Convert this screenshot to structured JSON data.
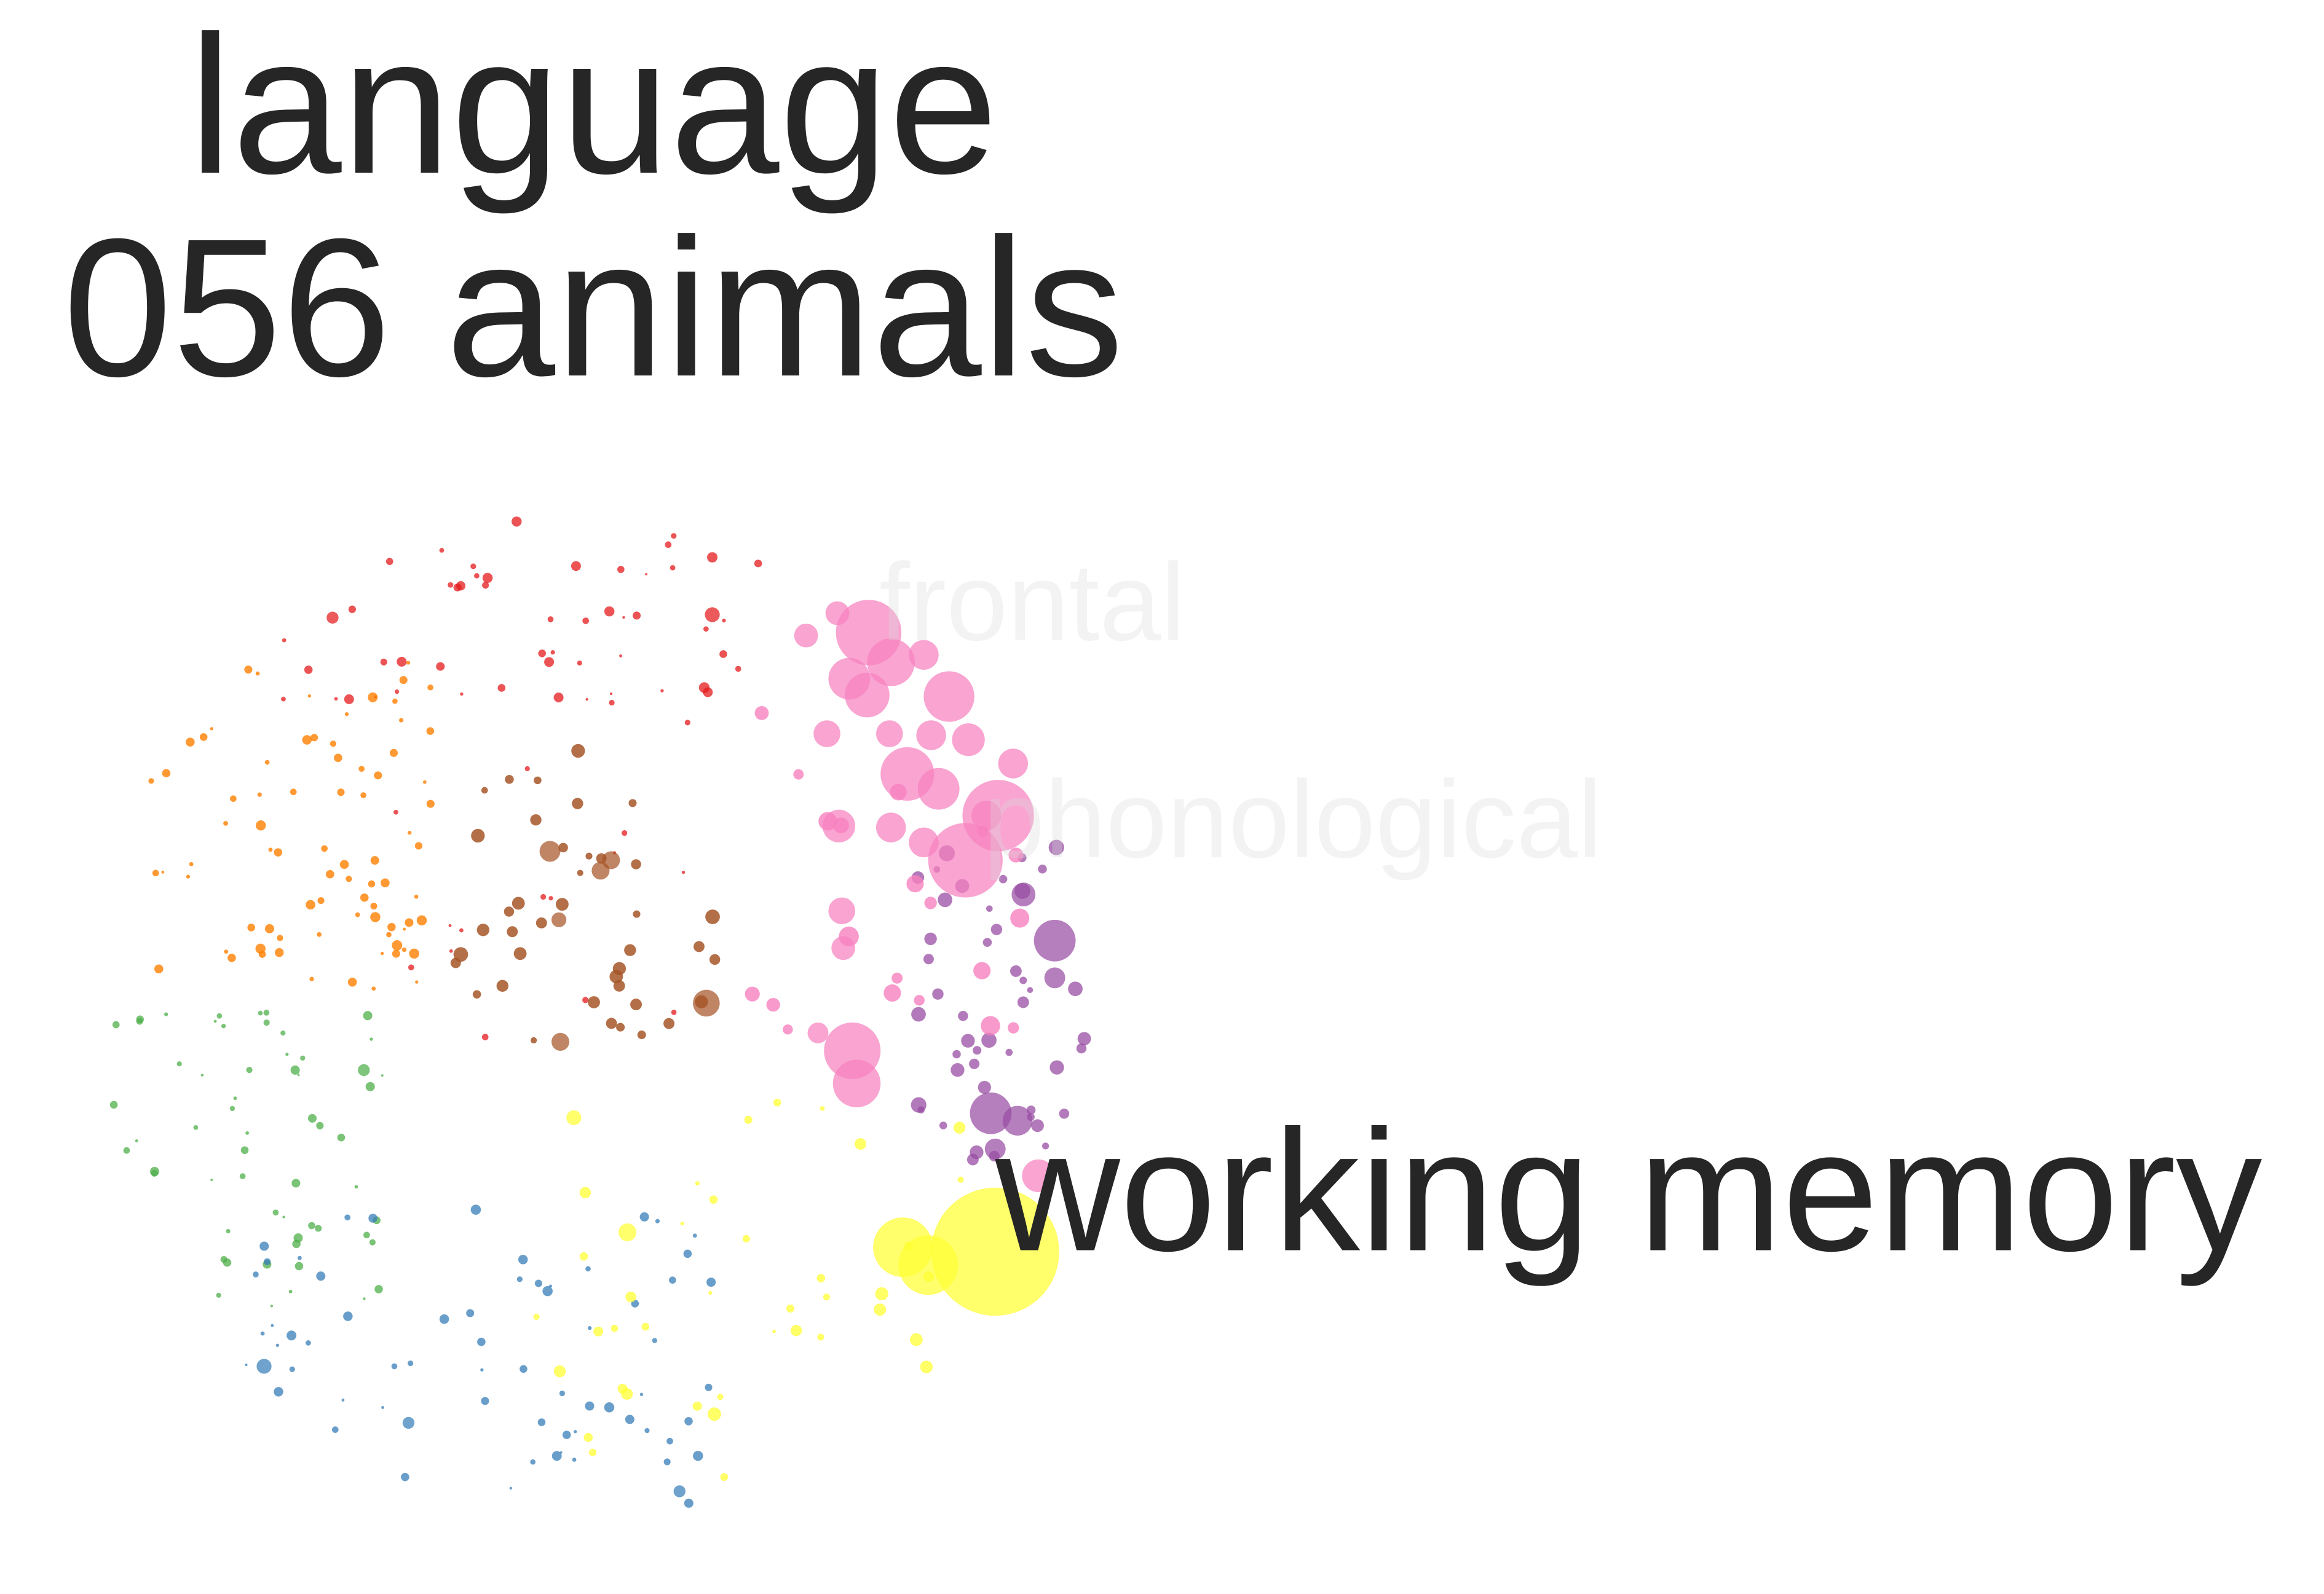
{
  "title": {
    "line1": "language",
    "line2": "056 animals"
  },
  "labels": {
    "frontal": "frontal",
    "phonological": "phonological",
    "working_memory": "working memory"
  },
  "colors": {
    "red": "#e41a1c",
    "orange": "#ff7f00",
    "brown": "#a65628",
    "pink": "#f781bf",
    "purple": "#984ea3",
    "green": "#4daf4a",
    "blue": "#377eb8",
    "yellow": "#ffff33",
    "text": "#262626",
    "faint_text": "#d9d9d9"
  }
}
